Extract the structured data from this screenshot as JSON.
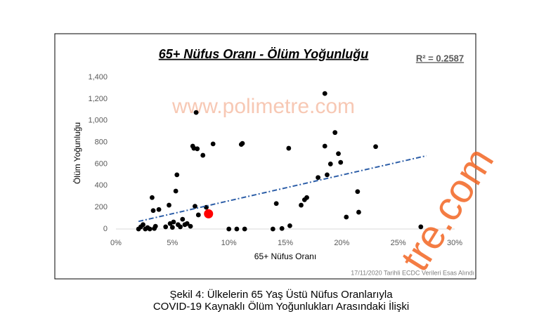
{
  "chart_data": {
    "type": "scatter",
    "title": "65+ Nüfus Oranı - Ölüm Yoğunluğu",
    "annotation": "R² = 0.2587",
    "watermark": "www.polimetre.com",
    "watermark_large": "tre.com",
    "source": "17/11/2020 Tarihli ECDC Verileri Esas Alındı",
    "x_label": "65+ Nüfus Oranı",
    "y_label": "Ölüm Yoğunluğu",
    "caption": [
      "Şekil 4: Ülkelerin 65 Yaş Üstü Nüfus Oranlarıyla",
      "COVID-19 Kaynaklı Ölüm Yoğunlukları Arasındaki İlişki"
    ],
    "xlim": [
      0,
      30
    ],
    "xticks": [
      {
        "value": 0,
        "label": "0%"
      },
      {
        "value": 5,
        "label": "5%"
      },
      {
        "value": 10,
        "label": "10%"
      },
      {
        "value": 15,
        "label": "15%"
      },
      {
        "value": 20,
        "label": "20%"
      },
      {
        "value": 25,
        "label": "25%"
      },
      {
        "value": 30,
        "label": "30%"
      }
    ],
    "ylim": [
      0,
      1400
    ],
    "yticks": [
      0,
      200,
      400,
      600,
      800,
      {
        "value": 1000,
        "label": "1,000"
      },
      {
        "value": 1200,
        "label": "1,200"
      },
      {
        "value": 1400,
        "label": "1,400"
      }
    ],
    "grid": false,
    "series": [
      {
        "color": "#000000",
        "x": [
          2.0,
          2.2,
          2.4,
          2.6,
          2.8,
          3.0,
          3.2,
          3.3,
          3.4,
          3.5,
          3.8,
          4.4,
          4.7,
          4.8,
          5.0,
          5.1,
          5.3,
          5.4,
          5.5,
          5.7,
          5.9,
          6.1,
          6.3,
          6.6,
          6.8,
          6.9,
          7.0,
          7.1,
          7.2,
          7.3,
          7.7,
          8.0,
          8.6,
          10.0,
          10.7,
          11.1,
          11.2,
          11.4,
          13.9,
          14.2,
          14.7,
          15.3,
          15.4,
          16.4,
          16.7,
          16.9,
          17.9,
          18.5,
          18.5,
          18.7,
          19.0,
          19.4,
          19.7,
          19.9,
          20.4,
          21.4,
          21.5,
          23.0,
          27.0
        ],
        "values": [
          0,
          20,
          40,
          0,
          13,
          0,
          290,
          170,
          5,
          25,
          180,
          20,
          220,
          50,
          15,
          65,
          350,
          500,
          40,
          20,
          90,
          40,
          50,
          25,
          765,
          745,
          210,
          1075,
          740,
          130,
          680,
          200,
          785,
          0,
          0,
          780,
          790,
          0,
          0,
          235,
          5,
          745,
          30,
          220,
          270,
          290,
          475,
          1250,
          765,
          500,
          600,
          890,
          695,
          615,
          110,
          345,
          155,
          760,
          20
        ]
      },
      {
        "color": "#ff0000",
        "x": [
          8.2
        ],
        "values": [
          140
        ]
      }
    ],
    "trendline": {
      "color": "#2e5fa8",
      "x": [
        2.0,
        27.5
      ],
      "values": [
        70,
        676
      ]
    }
  }
}
